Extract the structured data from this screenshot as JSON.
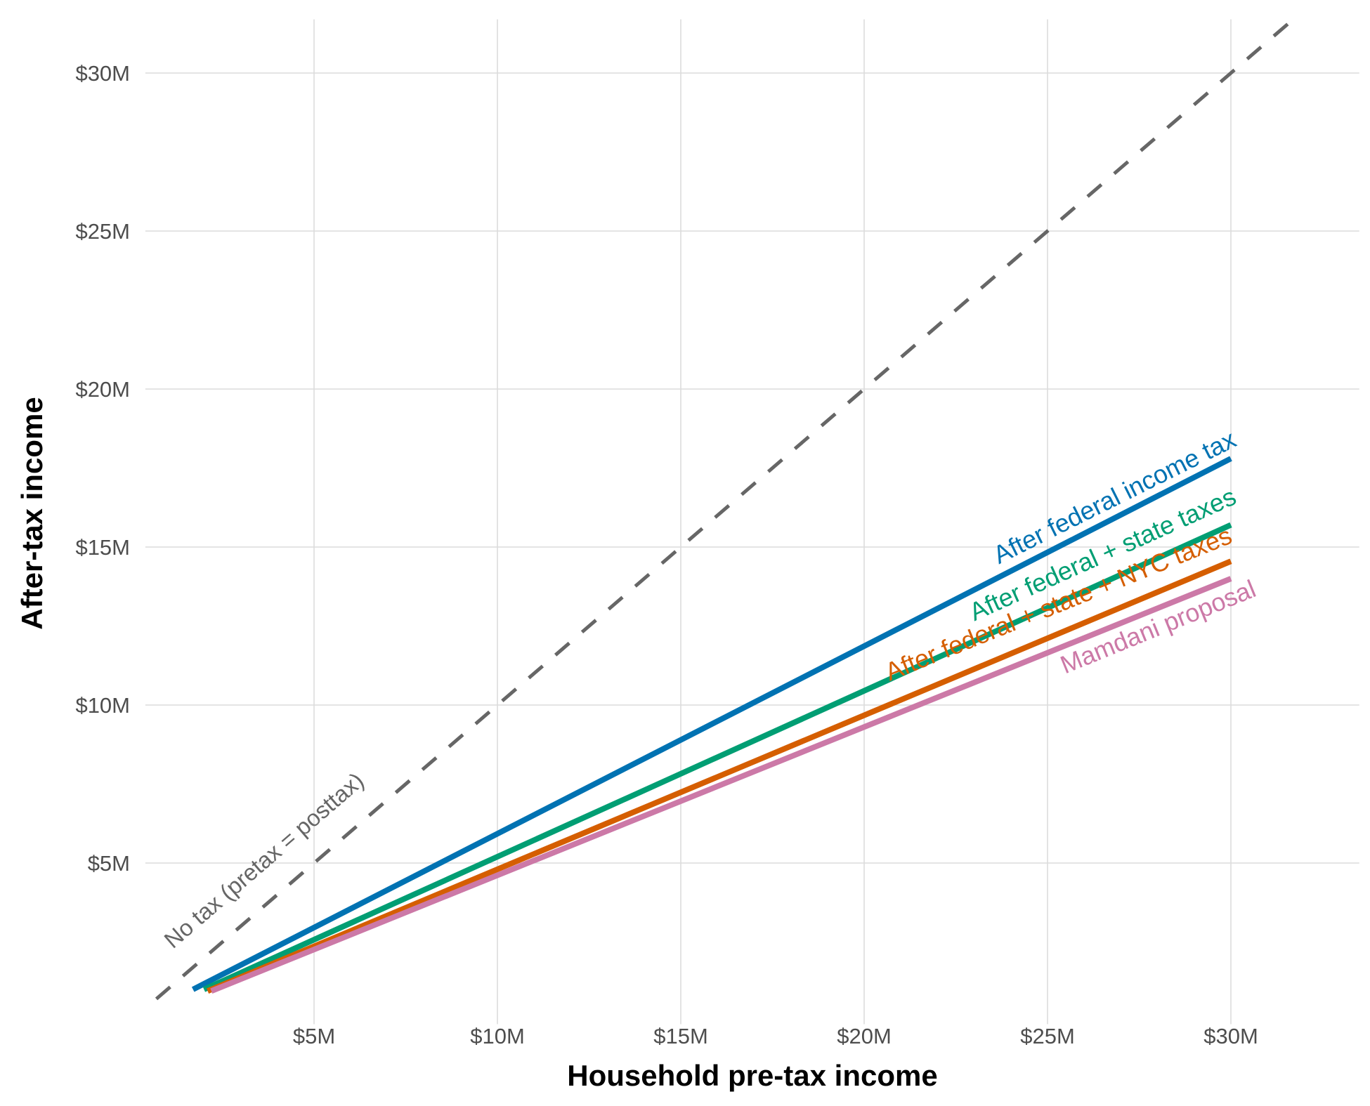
{
  "chart_data": {
    "type": "line",
    "title": "",
    "xlabel": "Household pre-tax income",
    "ylabel": "After-tax income",
    "xlim": [
      0.4,
      33.5
    ],
    "ylim": [
      -0.1,
      31.7
    ],
    "x_ticks": [
      5,
      10,
      15,
      20,
      25,
      30
    ],
    "x_tick_labels": [
      "$5M",
      "$10M",
      "$15M",
      "$20M",
      "$25M",
      "$30M"
    ],
    "y_ticks": [
      5,
      10,
      15,
      20,
      25,
      30
    ],
    "y_tick_labels": [
      "$5M",
      "$10M",
      "$15M",
      "$20M",
      "$25M",
      "$30M"
    ],
    "grid": true,
    "legend": "direct labels",
    "reference_line": {
      "name": "No tax (pretax = posttax)",
      "style": "dashed",
      "color": "#666666",
      "x": [
        0.7,
        31.6
      ],
      "y": [
        0.7,
        31.6
      ]
    },
    "series": [
      {
        "name": "After federal income tax",
        "color": "#0072B2",
        "x": [
          1.7,
          30
        ],
        "y": [
          1.0,
          17.8
        ]
      },
      {
        "name": "After federal + state taxes",
        "color": "#009E73",
        "x": [
          2.0,
          30
        ],
        "y": [
          1.0,
          15.7
        ]
      },
      {
        "name": "After federal + state + NYC taxes",
        "color": "#D55E00",
        "x": [
          2.1,
          30
        ],
        "y": [
          0.95,
          14.55
        ]
      },
      {
        "name": "Mamdani proposal",
        "color": "#CC79A7",
        "x": [
          2.2,
          30
        ],
        "y": [
          0.95,
          14.0
        ]
      }
    ]
  }
}
